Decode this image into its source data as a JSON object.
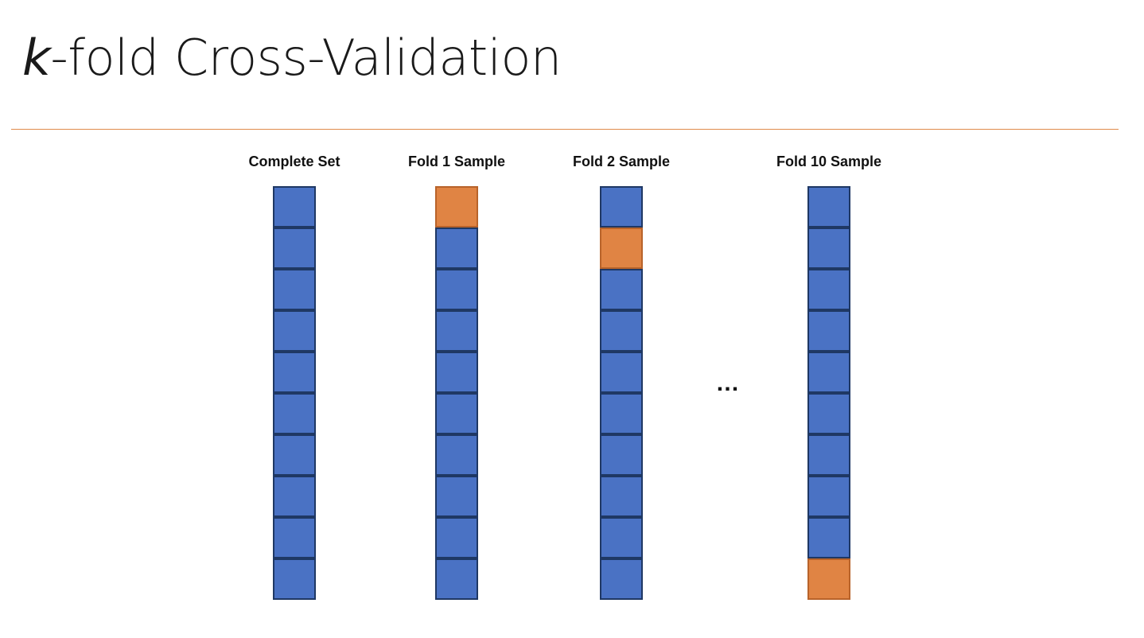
{
  "title": {
    "italic_part": "k",
    "rest": "-fold Cross-Validation"
  },
  "colors": {
    "train_fold": "#4a72c4",
    "test_fold": "#e08444",
    "rule": "#e08a4a"
  },
  "columns": [
    {
      "label": "Complete Set",
      "cells": 10,
      "test_index": null
    },
    {
      "label": "Fold 1 Sample",
      "cells": 10,
      "test_index": 0
    },
    {
      "label": "Fold 2 Sample",
      "cells": 10,
      "test_index": 1
    },
    {
      "label": "Fold 10 Sample",
      "cells": 10,
      "test_index": 9
    }
  ],
  "ellipsis": "…"
}
